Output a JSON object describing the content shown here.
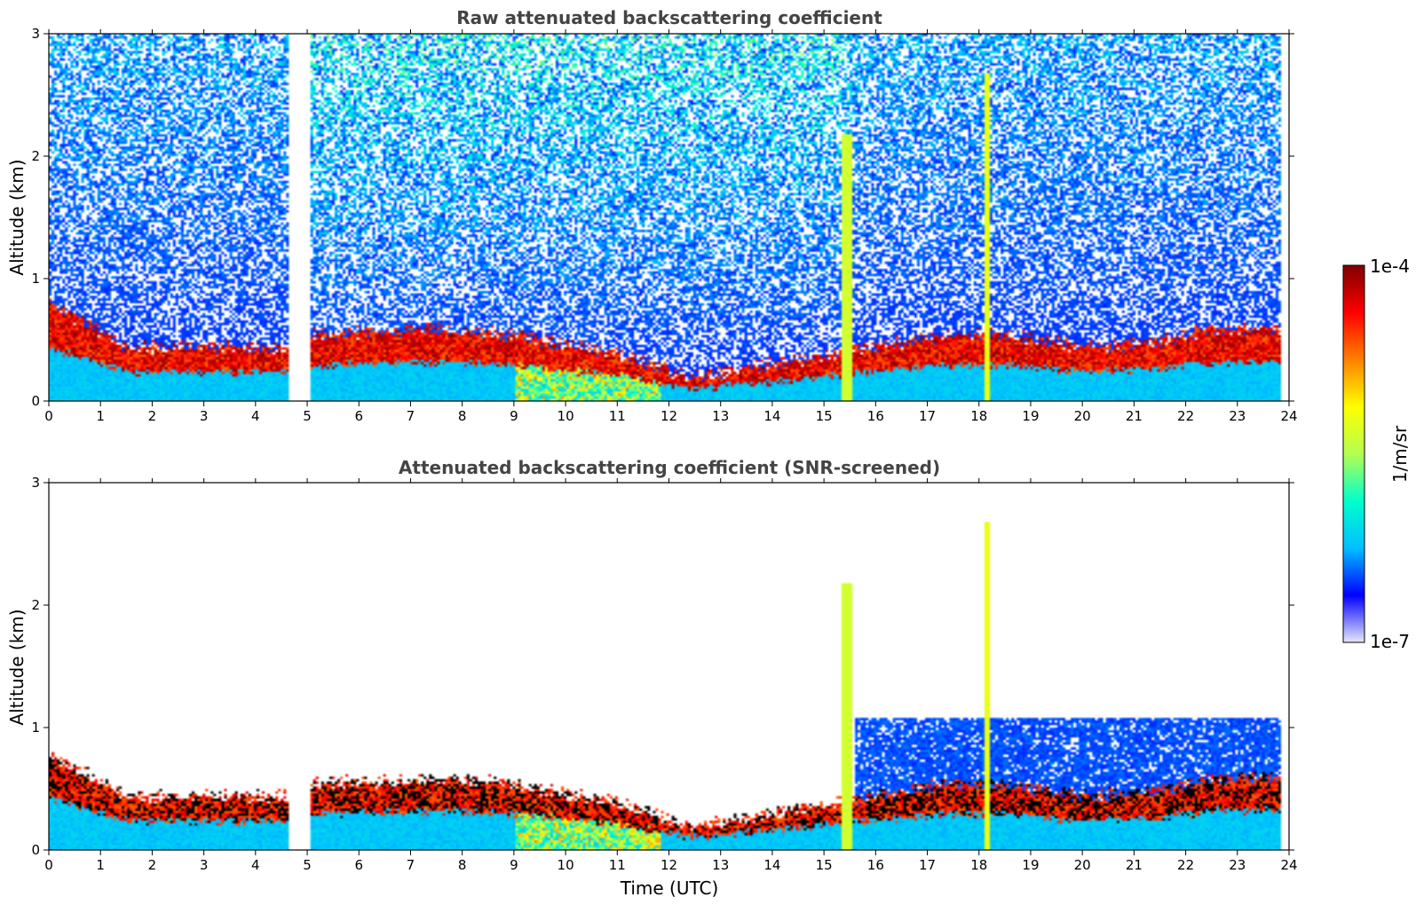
{
  "chart_data": [
    {
      "type": "heatmap",
      "title": "Raw attenuated backscattering coefficient",
      "xlabel": "",
      "ylabel": "Altitude (km)",
      "xlim": [
        0,
        24
      ],
      "ylim": [
        0,
        3
      ],
      "x_ticks": [
        "0",
        "1",
        "2",
        "3",
        "4",
        "5",
        "6",
        "7",
        "8",
        "9",
        "10",
        "11",
        "12",
        "13",
        "14",
        "15",
        "16",
        "17",
        "18",
        "19",
        "20",
        "21",
        "22",
        "23",
        "24"
      ],
      "y_ticks": [
        "0",
        "1",
        "2",
        "3"
      ],
      "data_gap_hours": [
        4.6,
        5.05
      ],
      "layer_top_km": [
        [
          0,
          0.8
        ],
        [
          1.5,
          0.45
        ],
        [
          4.6,
          0.45
        ],
        [
          5.05,
          0.55
        ],
        [
          7.5,
          0.6
        ],
        [
          9,
          0.55
        ],
        [
          11,
          0.4
        ],
        [
          12.4,
          0.2
        ],
        [
          17.3,
          0.55
        ],
        [
          18.5,
          0.55
        ],
        [
          20,
          0.45
        ],
        [
          21.5,
          0.5
        ],
        [
          22.5,
          0.6
        ],
        [
          23.8,
          0.6
        ]
      ],
      "noise_level": "high"
    },
    {
      "type": "heatmap",
      "title": "Attenuated backscattering coefficient (SNR-screened)",
      "xlabel": "Time (UTC)",
      "ylabel": "Altitude (km)",
      "xlim": [
        0,
        24
      ],
      "ylim": [
        0,
        3
      ],
      "x_ticks": [
        "0",
        "1",
        "2",
        "3",
        "4",
        "5",
        "6",
        "7",
        "8",
        "9",
        "10",
        "11",
        "12",
        "13",
        "14",
        "15",
        "16",
        "17",
        "18",
        "19",
        "20",
        "21",
        "22",
        "23",
        "24"
      ],
      "y_ticks": [
        "0",
        "1",
        "2",
        "3"
      ],
      "data_gap_hours": [
        4.6,
        5.05
      ],
      "noise_level": "screened"
    }
  ],
  "colorbar": {
    "label": "1/m/sr",
    "max_label": "1e-4",
    "min_label": "1e-7",
    "colors": [
      "#e6e6fa",
      "#0000ff",
      "#00bfff",
      "#00ffcc",
      "#b4ff50",
      "#ffff00",
      "#ff8000",
      "#ff0000",
      "#800000"
    ]
  }
}
